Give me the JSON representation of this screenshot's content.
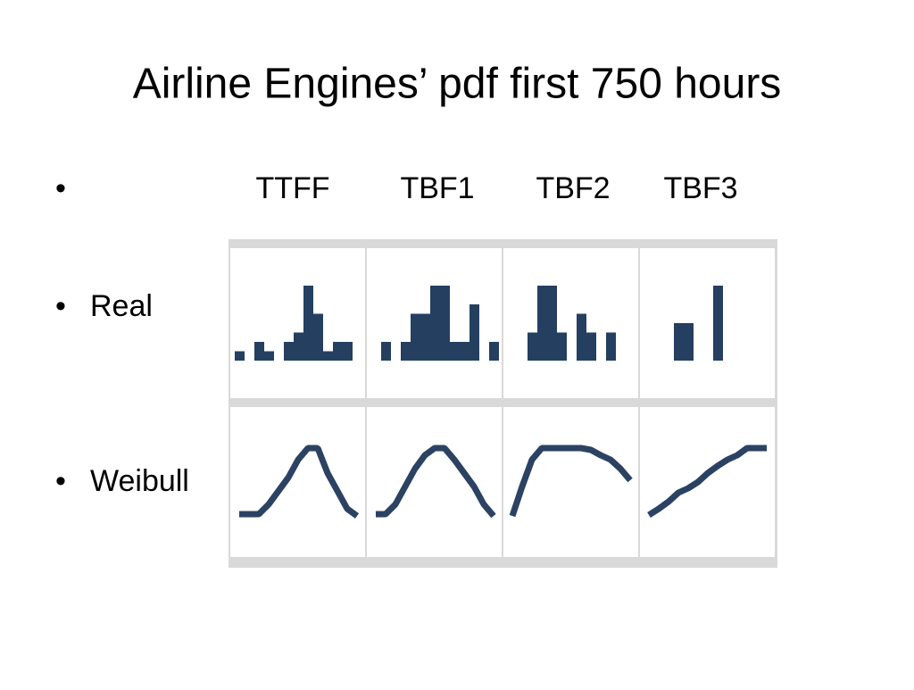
{
  "title": "Airline Engines’ pdf first 750 hours",
  "columns": [
    "TTFF",
    "TBF1",
    "TBF2",
    "TBF3"
  ],
  "rows": [
    {
      "label": "Real",
      "type": "histogram",
      "color": "#243f60",
      "series": [
        [
          1,
          0,
          2,
          1,
          0,
          2,
          3,
          8,
          5,
          1,
          2,
          2,
          0
        ],
        [
          0,
          2,
          0,
          2,
          5,
          5,
          8,
          8,
          2,
          2,
          6,
          0,
          2
        ],
        [
          0,
          0,
          3,
          8,
          8,
          3,
          0,
          5,
          3,
          0,
          3,
          0,
          0
        ],
        [
          0,
          0,
          0,
          4,
          4,
          0,
          0,
          8,
          0,
          0,
          0,
          0,
          0
        ]
      ]
    },
    {
      "label": "Weibull",
      "type": "line",
      "color": "#2b4263",
      "series": [
        [
          0.4,
          0.4,
          0.4,
          1.5,
          3,
          4.5,
          6.5,
          7.8,
          7.8,
          5,
          3,
          1,
          0.2
        ],
        [
          0.4,
          0.4,
          1.5,
          3.5,
          5.5,
          7,
          7.8,
          7.8,
          6.5,
          5,
          3.5,
          1.5,
          0.2
        ],
        [
          0.2,
          3.5,
          6.5,
          7.8,
          7.8,
          7.8,
          7.8,
          7.8,
          7.6,
          7,
          6.5,
          5.5,
          4.2
        ],
        [
          0.3,
          1,
          1.8,
          2.8,
          3.3,
          4,
          5,
          5.8,
          6.5,
          7,
          7.8,
          7.8,
          7.8
        ]
      ]
    }
  ]
}
